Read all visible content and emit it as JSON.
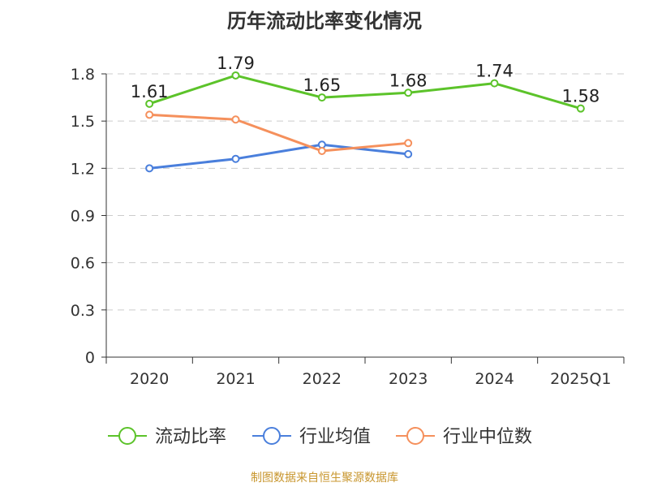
{
  "chart_data": {
    "type": "line",
    "title": "历年流动比率变化情况",
    "categories": [
      "2020",
      "2021",
      "2022",
      "2023",
      "2024",
      "2025Q1"
    ],
    "ylim": [
      0,
      1.8
    ],
    "yticks": [
      "0",
      "0.3",
      "0.6",
      "0.9",
      "1.2",
      "1.5",
      "1.8"
    ],
    "grid": true,
    "legend_position": "bottom",
    "series": [
      {
        "name": "流动比率",
        "color": "#5cc32a",
        "values": [
          1.61,
          1.79,
          1.65,
          1.68,
          1.74,
          1.58
        ],
        "labels": [
          "1.61",
          "1.79",
          "1.65",
          "1.68",
          "1.74",
          "1.58"
        ]
      },
      {
        "name": "行业均值",
        "color": "#4a7fdc",
        "values": [
          1.2,
          1.26,
          1.35,
          1.29,
          null,
          null
        ]
      },
      {
        "name": "行业中位数",
        "color": "#f5905c",
        "values": [
          1.54,
          1.51,
          1.31,
          1.36,
          null,
          null
        ]
      }
    ]
  },
  "source_note": "制图数据来自恒生聚源数据库"
}
